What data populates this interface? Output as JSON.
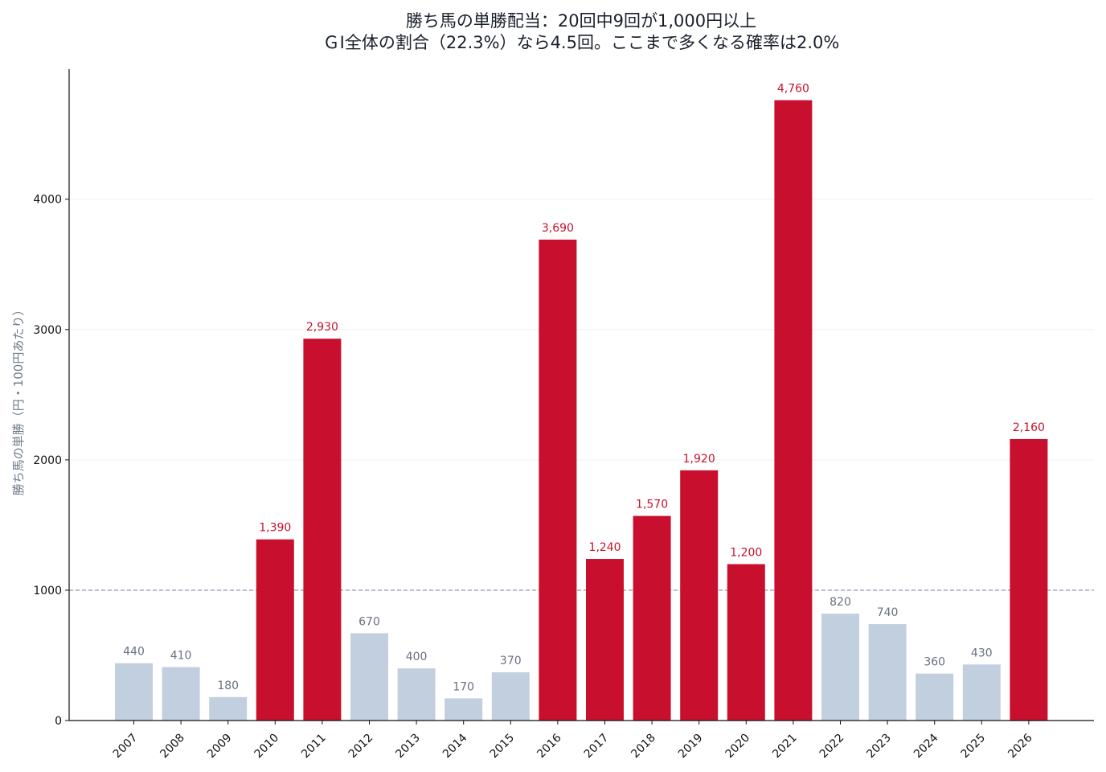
{
  "chart_data": {
    "type": "bar",
    "title": "勝ち馬の単勝配当：20回中9回が1,000円以上",
    "subtitle": "ＧⅠ全体の割合（22.3%）なら4.5回。ここまで多くなる確率は2.0%",
    "xlabel": "",
    "ylabel": "勝ち馬の単勝（円・100円あたり）",
    "categories": [
      "2007",
      "2008",
      "2009",
      "2010",
      "2011",
      "2012",
      "2013",
      "2014",
      "2015",
      "2016",
      "2017",
      "2018",
      "2019",
      "2020",
      "2021",
      "2022",
      "2023",
      "2024",
      "2025",
      "2026"
    ],
    "values": [
      440,
      410,
      180,
      1390,
      2930,
      670,
      400,
      170,
      370,
      3690,
      1240,
      1570,
      1920,
      1200,
      4760,
      820,
      740,
      360,
      430,
      2160
    ],
    "data_labels": [
      "440",
      "410",
      "180",
      "1,390",
      "2,930",
      "670",
      "400",
      "170",
      "370",
      "3,690",
      "1,240",
      "1,570",
      "1,920",
      "1,200",
      "4,760",
      "820",
      "740",
      "360",
      "430",
      "2,160"
    ],
    "highlight": [
      false,
      false,
      false,
      true,
      true,
      false,
      false,
      false,
      false,
      true,
      true,
      true,
      true,
      true,
      true,
      false,
      false,
      false,
      false,
      true
    ],
    "yticks": [
      0,
      1000,
      2000,
      3000,
      4000
    ],
    "ytick_labels": [
      "0",
      "1000",
      "2000",
      "3000",
      "4000"
    ],
    "ylim": [
      0,
      4998
    ],
    "reference_line": 1000,
    "grid": "horizontal",
    "colors": {
      "highlight": "#c8102e",
      "normal": "#c2cfdf",
      "normal_label": "#6a7080",
      "reference": "#8a8aa8"
    }
  }
}
